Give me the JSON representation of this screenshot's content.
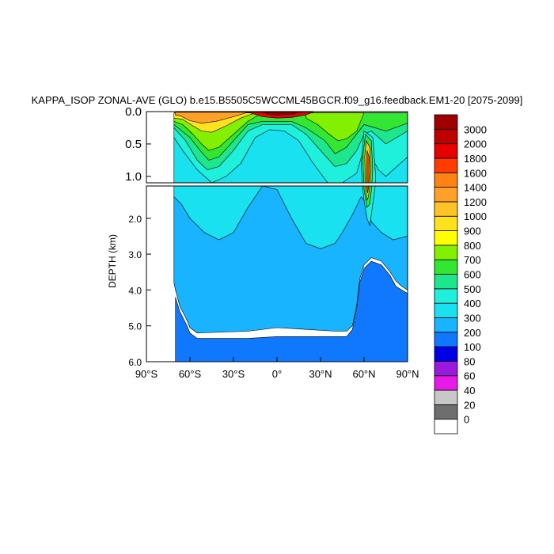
{
  "chart_data": {
    "type": "heatmap",
    "title": "KAPPA_ISOP ZONAL-AVE (GLO) b.e15.B5505C5WCCML45BGCR.f09_g16.feedback.EM1-20 [2075-2099]",
    "ylabel": "DEPTH (km)",
    "xlabel": "",
    "xlim": [
      -90,
      90
    ],
    "ylim_upper_panel": [
      0.0,
      1.1
    ],
    "ylim_lower_panel": [
      1.1,
      6.0
    ],
    "x_ticks": [
      {
        "value": -90,
        "label": "90°S"
      },
      {
        "value": -60,
        "label": "60°S"
      },
      {
        "value": -30,
        "label": "30°S"
      },
      {
        "value": 0,
        "label": "0°"
      },
      {
        "value": 30,
        "label": "30°N"
      },
      {
        "value": 60,
        "label": "60°N"
      },
      {
        "value": 90,
        "label": "90°N"
      }
    ],
    "y_ticks_upper": [
      {
        "value": 0.0,
        "label": "0.0"
      },
      {
        "value": 0.5,
        "label": "0.5"
      },
      {
        "value": 1.0,
        "label": "1.0"
      }
    ],
    "y_ticks_lower": [
      {
        "value": 2.0,
        "label": "2.0"
      },
      {
        "value": 3.0,
        "label": "3.0"
      },
      {
        "value": 4.0,
        "label": "4.0"
      },
      {
        "value": 5.0,
        "label": "5.0"
      },
      {
        "value": 6.0,
        "label": "6.0"
      }
    ],
    "colorbar": {
      "levels": [
        "0",
        "20",
        "40",
        "60",
        "80",
        "100",
        "200",
        "300",
        "400",
        "500",
        "600",
        "700",
        "800",
        "900",
        "1000",
        "1200",
        "1400",
        "1600",
        "1800",
        "2000",
        "3000"
      ],
      "colors": [
        "#ffffff",
        "#6e6e6e",
        "#c8c8c8",
        "#e619e6",
        "#9b19dc",
        "#0000e6",
        "#0f78ff",
        "#19b4ff",
        "#19e1f0",
        "#1ef0dc",
        "#1ee68c",
        "#32e632",
        "#82f000",
        "#ffff00",
        "#ffe11e",
        "#ffc328",
        "#ffa028",
        "#ff8214",
        "#ff3c00",
        "#e60000",
        "#be0000",
        "#a00000"
      ]
    },
    "regions": [
      {
        "name": "bottom-300",
        "color": "#0f78ff",
        "pts": [
          [
            -70,
            4.2
          ],
          [
            -67,
            4.6
          ],
          [
            -62,
            5.0
          ],
          [
            -60,
            5.2
          ],
          [
            -55,
            5.35
          ],
          [
            -20,
            5.35
          ],
          [
            0,
            5.3
          ],
          [
            20,
            5.3
          ],
          [
            40,
            5.3
          ],
          [
            48,
            5.3
          ],
          [
            52,
            5.1
          ],
          [
            55,
            4.5
          ],
          [
            57,
            3.8
          ],
          [
            60,
            3.4
          ],
          [
            65,
            3.2
          ],
          [
            72,
            3.3
          ],
          [
            78,
            3.6
          ],
          [
            82,
            3.9
          ],
          [
            86,
            4.0
          ],
          [
            90,
            4.1
          ],
          [
            90,
            6.0
          ],
          [
            -70,
            6.0
          ]
        ]
      },
      {
        "name": "interior-200",
        "color": "#19b4ff",
        "pts": [
          [
            -71,
            0.1
          ],
          [
            90,
            0.1
          ],
          [
            90,
            4.0
          ],
          [
            86,
            3.9
          ],
          [
            82,
            3.75
          ],
          [
            78,
            3.5
          ],
          [
            72,
            3.2
          ],
          [
            65,
            3.1
          ],
          [
            60,
            3.3
          ],
          [
            57,
            3.7
          ],
          [
            55,
            4.4
          ],
          [
            52,
            5.0
          ],
          [
            48,
            5.15
          ],
          [
            40,
            5.15
          ],
          [
            20,
            5.1
          ],
          [
            0,
            5.05
          ],
          [
            -20,
            5.15
          ],
          [
            -55,
            5.2
          ],
          [
            -60,
            5.05
          ],
          [
            -62,
            4.85
          ],
          [
            -67,
            4.45
          ],
          [
            -70,
            4.0
          ],
          [
            -71,
            3.8
          ]
        ]
      },
      {
        "name": "mid-300",
        "color": "#19e1f0",
        "pts": [
          [
            -71,
            0.1
          ],
          [
            90,
            0.1
          ],
          [
            90,
            2.5
          ],
          [
            80,
            2.6
          ],
          [
            72,
            2.4
          ],
          [
            65,
            2.1
          ],
          [
            62,
            1.6
          ],
          [
            58,
            1.4
          ],
          [
            52,
            1.9
          ],
          [
            45,
            2.4
          ],
          [
            40,
            2.7
          ],
          [
            30,
            2.85
          ],
          [
            20,
            2.7
          ],
          [
            10,
            2.0
          ],
          [
            0,
            1.2
          ],
          [
            -10,
            1.1
          ],
          [
            -20,
            1.7
          ],
          [
            -30,
            2.4
          ],
          [
            -40,
            2.6
          ],
          [
            -50,
            2.4
          ],
          [
            -60,
            2.0
          ],
          [
            -66,
            1.6
          ],
          [
            -71,
            1.4
          ]
        ]
      },
      {
        "name": "upper-400",
        "color": "#1ef0dc",
        "pts": [
          [
            -71,
            0.05
          ],
          [
            90,
            0.05
          ],
          [
            90,
            0.7
          ],
          [
            80,
            0.9
          ],
          [
            75,
            1.0
          ],
          [
            70,
            0.9
          ],
          [
            65,
            0.7
          ],
          [
            60,
            0.55
          ],
          [
            55,
            0.95
          ],
          [
            45,
            1.1
          ],
          [
            35,
            1.1
          ],
          [
            25,
            0.8
          ],
          [
            15,
            0.45
          ],
          [
            5,
            0.3
          ],
          [
            -5,
            0.28
          ],
          [
            -15,
            0.4
          ],
          [
            -25,
            0.8
          ],
          [
            -35,
            1.0
          ],
          [
            -45,
            1.1
          ],
          [
            -55,
            0.9
          ],
          [
            -65,
            0.6
          ],
          [
            -71,
            0.4
          ]
        ]
      },
      {
        "name": "upper-600",
        "color": "#1ee68c",
        "pts": [
          [
            -71,
            0.02
          ],
          [
            90,
            0.02
          ],
          [
            90,
            0.3
          ],
          [
            75,
            0.5
          ],
          [
            65,
            0.3
          ],
          [
            60,
            0.35
          ],
          [
            55,
            0.6
          ],
          [
            48,
            0.8
          ],
          [
            40,
            0.85
          ],
          [
            30,
            0.6
          ],
          [
            20,
            0.35
          ],
          [
            10,
            0.2
          ],
          [
            -10,
            0.2
          ],
          [
            -20,
            0.3
          ],
          [
            -30,
            0.6
          ],
          [
            -40,
            0.85
          ],
          [
            -48,
            0.9
          ],
          [
            -55,
            0.75
          ],
          [
            -63,
            0.45
          ],
          [
            -71,
            0.25
          ]
        ]
      },
      {
        "name": "upper-700",
        "color": "#32e632",
        "pts": [
          [
            -71,
            0.02
          ],
          [
            90,
            0.02
          ],
          [
            90,
            0.18
          ],
          [
            75,
            0.3
          ],
          [
            60,
            0.2
          ],
          [
            53,
            0.4
          ],
          [
            48,
            0.55
          ],
          [
            40,
            0.65
          ],
          [
            33,
            0.45
          ],
          [
            20,
            0.25
          ],
          [
            10,
            0.15
          ],
          [
            -10,
            0.15
          ],
          [
            -20,
            0.2
          ],
          [
            -30,
            0.45
          ],
          [
            -40,
            0.7
          ],
          [
            -47,
            0.75
          ],
          [
            -53,
            0.6
          ],
          [
            -60,
            0.4
          ],
          [
            -71,
            0.2
          ]
        ]
      },
      {
        "name": "upper-800",
        "color": "#82f000",
        "pts": [
          [
            -71,
            0.02
          ],
          [
            -10,
            0.02
          ],
          [
            -20,
            0.15
          ],
          [
            -30,
            0.35
          ],
          [
            -40,
            0.55
          ],
          [
            -47,
            0.6
          ],
          [
            -52,
            0.5
          ],
          [
            -58,
            0.35
          ],
          [
            -65,
            0.2
          ],
          [
            -71,
            0.15
          ]
        ]
      },
      {
        "name": "upper-800-n",
        "color": "#82f000",
        "pts": [
          [
            20,
            0.02
          ],
          [
            60,
            0.02
          ],
          [
            55,
            0.3
          ],
          [
            48,
            0.42
          ],
          [
            42,
            0.45
          ],
          [
            36,
            0.35
          ],
          [
            28,
            0.2
          ],
          [
            20,
            0.1
          ]
        ]
      },
      {
        "name": "upper-1000",
        "color": "#ffe11e",
        "pts": [
          [
            -71,
            0.02
          ],
          [
            -15,
            0.02
          ],
          [
            -25,
            0.1
          ],
          [
            -35,
            0.22
          ],
          [
            -45,
            0.32
          ],
          [
            -52,
            0.3
          ],
          [
            -58,
            0.22
          ],
          [
            -65,
            0.12
          ],
          [
            -71,
            0.1
          ]
        ]
      },
      {
        "name": "upper-1400",
        "color": "#ffa028",
        "pts": [
          [
            -70,
            0.01
          ],
          [
            -20,
            0.01
          ],
          [
            -30,
            0.08
          ],
          [
            -42,
            0.15
          ],
          [
            -52,
            0.18
          ],
          [
            -60,
            0.14
          ],
          [
            -66,
            0.07
          ],
          [
            -70,
            0.05
          ]
        ]
      },
      {
        "name": "surface-2000",
        "color": "#e60000",
        "pts": [
          [
            -20,
            0.01
          ],
          [
            25,
            0.01
          ],
          [
            20,
            0.05
          ],
          [
            10,
            0.09
          ],
          [
            0,
            0.1
          ],
          [
            -10,
            0.08
          ]
        ]
      },
      {
        "name": "surface-3000",
        "color": "#a00000",
        "pts": [
          [
            -10,
            0.01
          ],
          [
            15,
            0.01
          ],
          [
            10,
            0.04
          ],
          [
            0,
            0.05
          ],
          [
            -5,
            0.04
          ]
        ]
      },
      {
        "name": "plume-400",
        "color": "#1ef0dc",
        "pts": [
          [
            60,
            0.3
          ],
          [
            66,
            0.4
          ],
          [
            68,
            1.0
          ],
          [
            66,
            1.6
          ],
          [
            64,
            2.2
          ],
          [
            62,
            2.0
          ],
          [
            60,
            1.5
          ],
          [
            58,
            0.8
          ]
        ]
      },
      {
        "name": "plume-700",
        "color": "#32e632",
        "pts": [
          [
            61,
            0.35
          ],
          [
            65,
            0.45
          ],
          [
            66,
            0.9
          ],
          [
            64,
            1.6
          ],
          [
            62,
            1.7
          ],
          [
            60,
            1.2
          ],
          [
            59,
            0.7
          ]
        ]
      },
      {
        "name": "plume-1200",
        "color": "#ffc328",
        "pts": [
          [
            61.5,
            0.45
          ],
          [
            64,
            0.55
          ],
          [
            64.5,
            0.9
          ],
          [
            63,
            1.4
          ],
          [
            62,
            1.5
          ],
          [
            61,
            1.1
          ],
          [
            60.5,
            0.7
          ]
        ]
      },
      {
        "name": "plume-1800",
        "color": "#ff3c00",
        "pts": [
          [
            62,
            0.6
          ],
          [
            63.5,
            0.7
          ],
          [
            63.5,
            1.0
          ],
          [
            62.5,
            1.3
          ],
          [
            61.8,
            1.1
          ]
        ]
      }
    ]
  }
}
